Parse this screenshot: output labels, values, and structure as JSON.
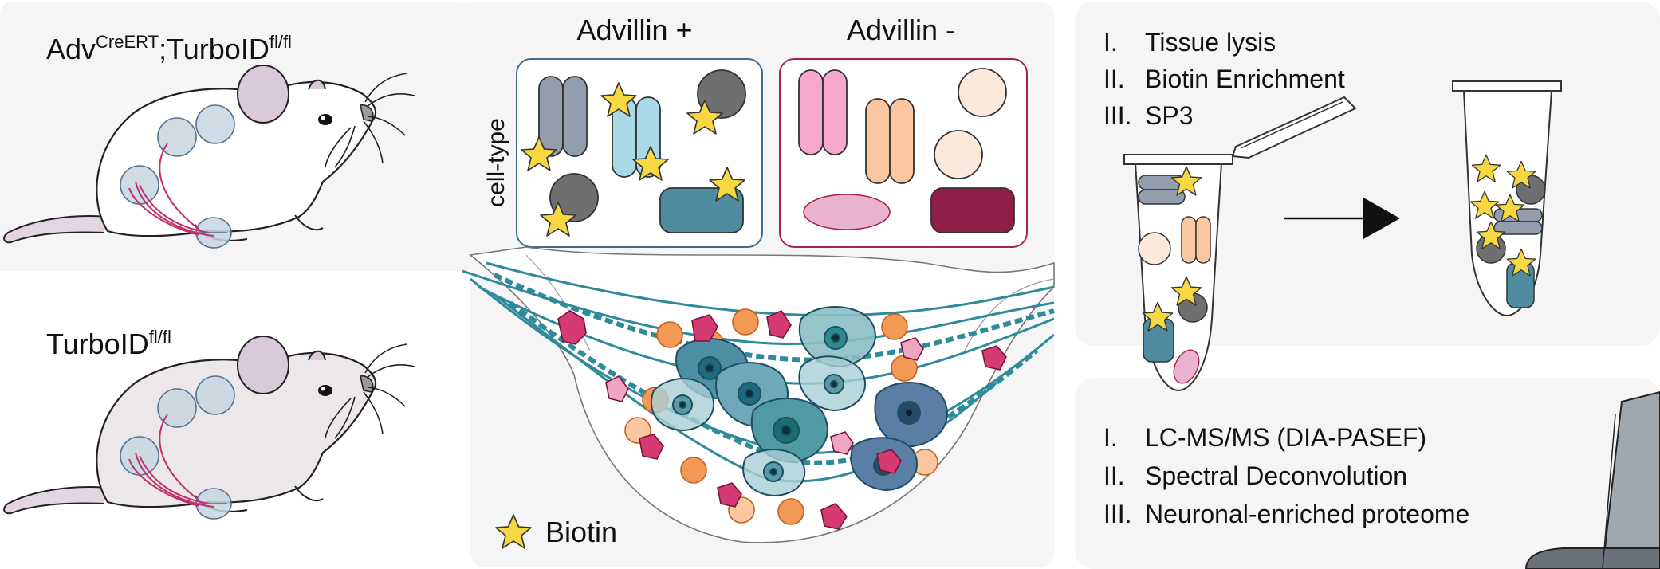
{
  "mouse_panel": {
    "genotype_exp": {
      "base1": "Adv",
      "sup1": "CreERT",
      "base2": ";TurboID",
      "sup2": "fl/fl"
    },
    "genotype_ctrl": {
      "base": "TurboID",
      "sup": "fl/fl"
    }
  },
  "cell_panel": {
    "advillin_pos": "Advillin +",
    "advillin_neg": "Advillin -",
    "cell_type_label": "cell-type",
    "legend_biotin": "Biotin"
  },
  "prep_panel": {
    "steps": [
      "Tissue lysis",
      "Biotin Enrichment",
      "SP3"
    ],
    "numerals": [
      "I.",
      "II.",
      "III."
    ]
  },
  "ms_panel": {
    "steps": [
      "LC-MS/MS (DIA-PASEF)",
      "Spectral Deconvolution",
      "Neuronal-enriched proteome"
    ],
    "numerals": [
      "I.",
      "II.",
      "III."
    ]
  },
  "colors": {
    "panel_bg": "#f5f5f5",
    "star": "#f7d842",
    "slate": "#939dab",
    "lightblue": "#a9d9e6",
    "teal": "#4f8c9f",
    "darkgray": "#6f6f6f",
    "pink": "#f7a6cc",
    "peach": "#fbc7a0",
    "cream": "#fce9dc",
    "mauve": "#e9b3cf",
    "maroon": "#8f1d47",
    "border_blue": "#436a86",
    "border_red": "#a8224f",
    "ganglion_cell": "#3f8fa6",
    "satellite": "#f29a55",
    "magenta_cell": "#d63a73"
  }
}
